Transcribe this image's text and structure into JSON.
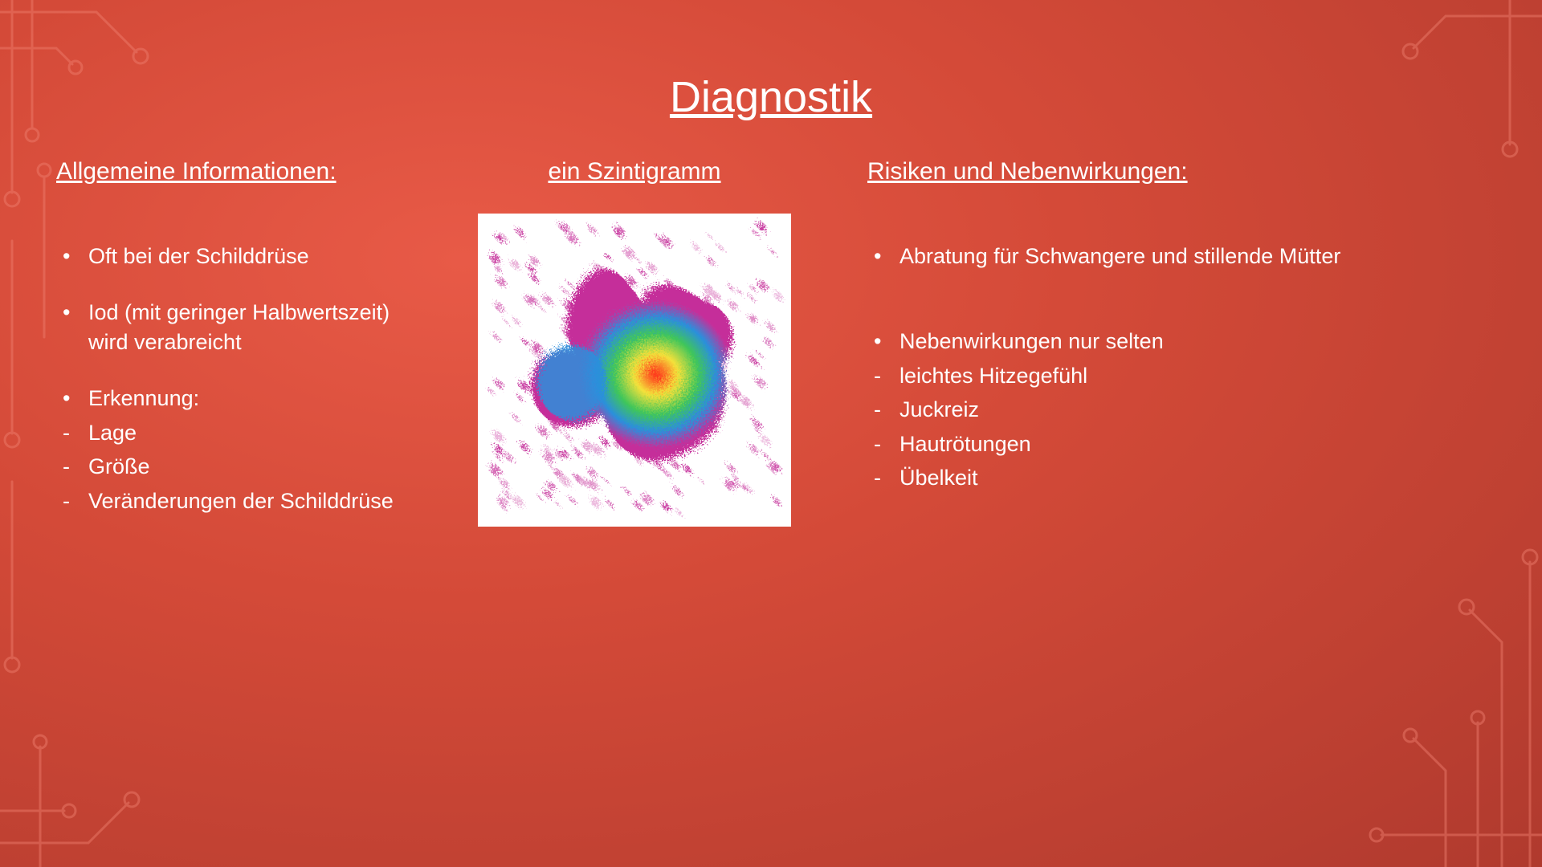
{
  "title": "Diagnostik",
  "left": {
    "heading": "Allgemeine Informationen:",
    "items": [
      {
        "text": "Oft bei der Schilddrüse",
        "type": "bullet"
      },
      {
        "text": "Iod (mit geringer Halbwertszeit) wird verabreicht",
        "type": "bullet"
      },
      {
        "text": "Erkennung:",
        "type": "bullet-tight"
      },
      {
        "text": "Lage",
        "type": "dash"
      },
      {
        "text": "Größe",
        "type": "dash"
      },
      {
        "text": "Veränderungen der Schilddrüse",
        "type": "dash"
      }
    ]
  },
  "middle": {
    "heading": "ein Szintigramm",
    "image": {
      "background": "#ffffff",
      "colors": {
        "outer": "#c52f9a",
        "ring": "#2b8fdc",
        "mid": "#3fc65a",
        "inner": "#f5e13a",
        "hot": "#ff2a1a"
      }
    }
  },
  "right": {
    "heading": "Risiken und Nebenwirkungen:",
    "items": [
      {
        "text": "Abratung für Schwangere und stillende Mütter",
        "type": "bullet-gap"
      },
      {
        "text": "Nebenwirkungen nur selten",
        "type": "bullet-tight"
      },
      {
        "text": " leichtes Hitzegefühl",
        "type": "dash"
      },
      {
        "text": "Juckreiz",
        "type": "dash"
      },
      {
        "text": "Hautrötungen",
        "type": "dash"
      },
      {
        "text": "Übelkeit",
        "type": "dash"
      }
    ]
  },
  "decor": {
    "stroke": "#f08070",
    "stroke_width": 3,
    "node_radius": 9
  }
}
